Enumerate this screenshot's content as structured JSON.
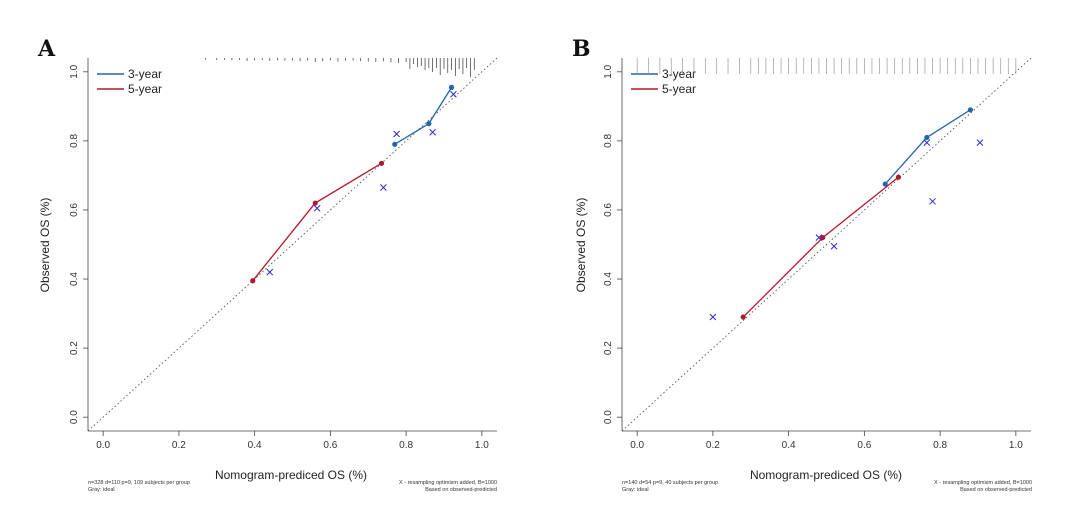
{
  "chart_data": [
    {
      "panel": "A",
      "type": "line",
      "xlabel": "Nomogram-prediced OS (%)",
      "ylabel": "Observed OS (%)",
      "xlim": [
        -0.04,
        1.04
      ],
      "ylim": [
        -0.04,
        1.04
      ],
      "x_ticks": [
        "0.0",
        "0.2",
        "0.4",
        "0.6",
        "0.8",
        "1.0"
      ],
      "y_ticks": [
        "0.0",
        "0.2",
        "0.4",
        "0.6",
        "0.8",
        "1.0"
      ],
      "grid": false,
      "legend_position": "top-left",
      "ideal_line": "diagonal dotted gray",
      "series": [
        {
          "name": "3-year",
          "color": "#2166ac",
          "x": [
            0.77,
            0.86,
            0.92
          ],
          "y": [
            0.79,
            0.85,
            0.955
          ]
        },
        {
          "name": "5-year",
          "color": "#b2182b",
          "x": [
            0.395,
            0.56,
            0.735
          ],
          "y": [
            0.395,
            0.62,
            0.735
          ]
        }
      ],
      "corrected_points": {
        "marker": "x",
        "color": "#2b2bd9",
        "x": [
          0.44,
          0.565,
          0.74,
          0.775,
          0.87,
          0.925
        ],
        "y": [
          0.42,
          0.605,
          0.665,
          0.82,
          0.825,
          0.935
        ]
      },
      "rug": {
        "color": "#333333",
        "x": [
          0.27,
          0.3,
          0.32,
          0.34,
          0.36,
          0.38,
          0.4,
          0.42,
          0.44,
          0.46,
          0.48,
          0.5,
          0.52,
          0.54,
          0.56,
          0.58,
          0.6,
          0.62,
          0.64,
          0.66,
          0.68,
          0.7,
          0.72,
          0.74,
          0.76,
          0.78,
          0.8,
          0.81,
          0.82,
          0.83,
          0.84,
          0.85,
          0.86,
          0.87,
          0.88,
          0.89,
          0.9,
          0.91,
          0.92,
          0.93,
          0.94,
          0.95,
          0.96,
          0.97,
          0.98
        ],
        "h": [
          0.08,
          0.1,
          0.1,
          0.12,
          0.1,
          0.15,
          0.12,
          0.1,
          0.15,
          0.12,
          0.14,
          0.12,
          0.16,
          0.12,
          0.2,
          0.15,
          0.12,
          0.18,
          0.14,
          0.12,
          0.16,
          0.18,
          0.2,
          0.16,
          0.22,
          0.25,
          0.2,
          0.55,
          0.3,
          0.45,
          0.4,
          0.6,
          0.5,
          0.7,
          0.5,
          0.85,
          0.55,
          0.75,
          0.6,
          0.9,
          0.55,
          0.8,
          0.5,
          0.95,
          0.6
        ]
      },
      "footnote_left": [
        "n=328 d=110 p=9, 109 subjects per group",
        "Gray: ideal"
      ],
      "footnote_right": [
        "X - resampling optimism added, B=1000",
        "Based on observed-predicted"
      ]
    },
    {
      "panel": "B",
      "type": "line",
      "xlabel": "Nomogram-prediced OS (%)",
      "ylabel": "Observed OS (%)",
      "xlim": [
        -0.04,
        1.04
      ],
      "ylim": [
        -0.04,
        1.04
      ],
      "x_ticks": [
        "0.0",
        "0.2",
        "0.4",
        "0.6",
        "0.8",
        "1.0"
      ],
      "y_ticks": [
        "0.0",
        "0.2",
        "0.4",
        "0.6",
        "0.8",
        "1.0"
      ],
      "grid": false,
      "legend_position": "top-left",
      "ideal_line": "diagonal dotted gray",
      "series": [
        {
          "name": "3-year",
          "color": "#2166ac",
          "x": [
            0.655,
            0.765,
            0.88
          ],
          "y": [
            0.675,
            0.81,
            0.89
          ]
        },
        {
          "name": "5-year",
          "color": "#b2182b",
          "x": [
            0.28,
            0.49,
            0.69
          ],
          "y": [
            0.29,
            0.52,
            0.695
          ]
        }
      ],
      "corrected_points": {
        "marker": "x",
        "color": "#2b2bd9",
        "x": [
          0.2,
          0.48,
          0.52,
          0.765,
          0.78,
          0.905
        ],
        "y": [
          0.29,
          0.52,
          0.495,
          0.795,
          0.625,
          0.795
        ]
      },
      "rug": {
        "color": "#999999",
        "x": [
          0.0,
          0.03,
          0.06,
          0.09,
          0.12,
          0.15,
          0.18,
          0.21,
          0.24,
          0.27,
          0.3,
          0.32,
          0.34,
          0.36,
          0.38,
          0.4,
          0.42,
          0.44,
          0.46,
          0.48,
          0.5,
          0.52,
          0.54,
          0.56,
          0.58,
          0.6,
          0.62,
          0.64,
          0.66,
          0.68,
          0.7,
          0.72,
          0.74,
          0.76,
          0.78,
          0.8,
          0.82,
          0.84,
          0.86,
          0.88,
          0.9,
          0.92,
          0.94,
          0.96,
          0.98,
          1.0
        ],
        "h": [
          0.8,
          0.8,
          0.8,
          0.8,
          0.8,
          0.8,
          0.8,
          0.8,
          0.8,
          0.8,
          0.8,
          0.8,
          0.8,
          0.8,
          0.8,
          0.8,
          0.8,
          0.8,
          0.8,
          0.8,
          0.8,
          0.8,
          0.8,
          0.8,
          0.8,
          0.8,
          0.8,
          0.8,
          0.8,
          0.8,
          0.8,
          0.8,
          0.8,
          0.8,
          0.8,
          0.8,
          0.8,
          0.8,
          0.8,
          0.8,
          0.8,
          0.8,
          0.8,
          0.8,
          0.8,
          0.8
        ]
      },
      "footnote_left": [
        "n=140 d=54 p=9, 40 subjects per group",
        "Gray: ideal"
      ],
      "footnote_right": [
        "X - resampling optimism added, B=1000",
        "Based on observed-predicted"
      ]
    }
  ]
}
